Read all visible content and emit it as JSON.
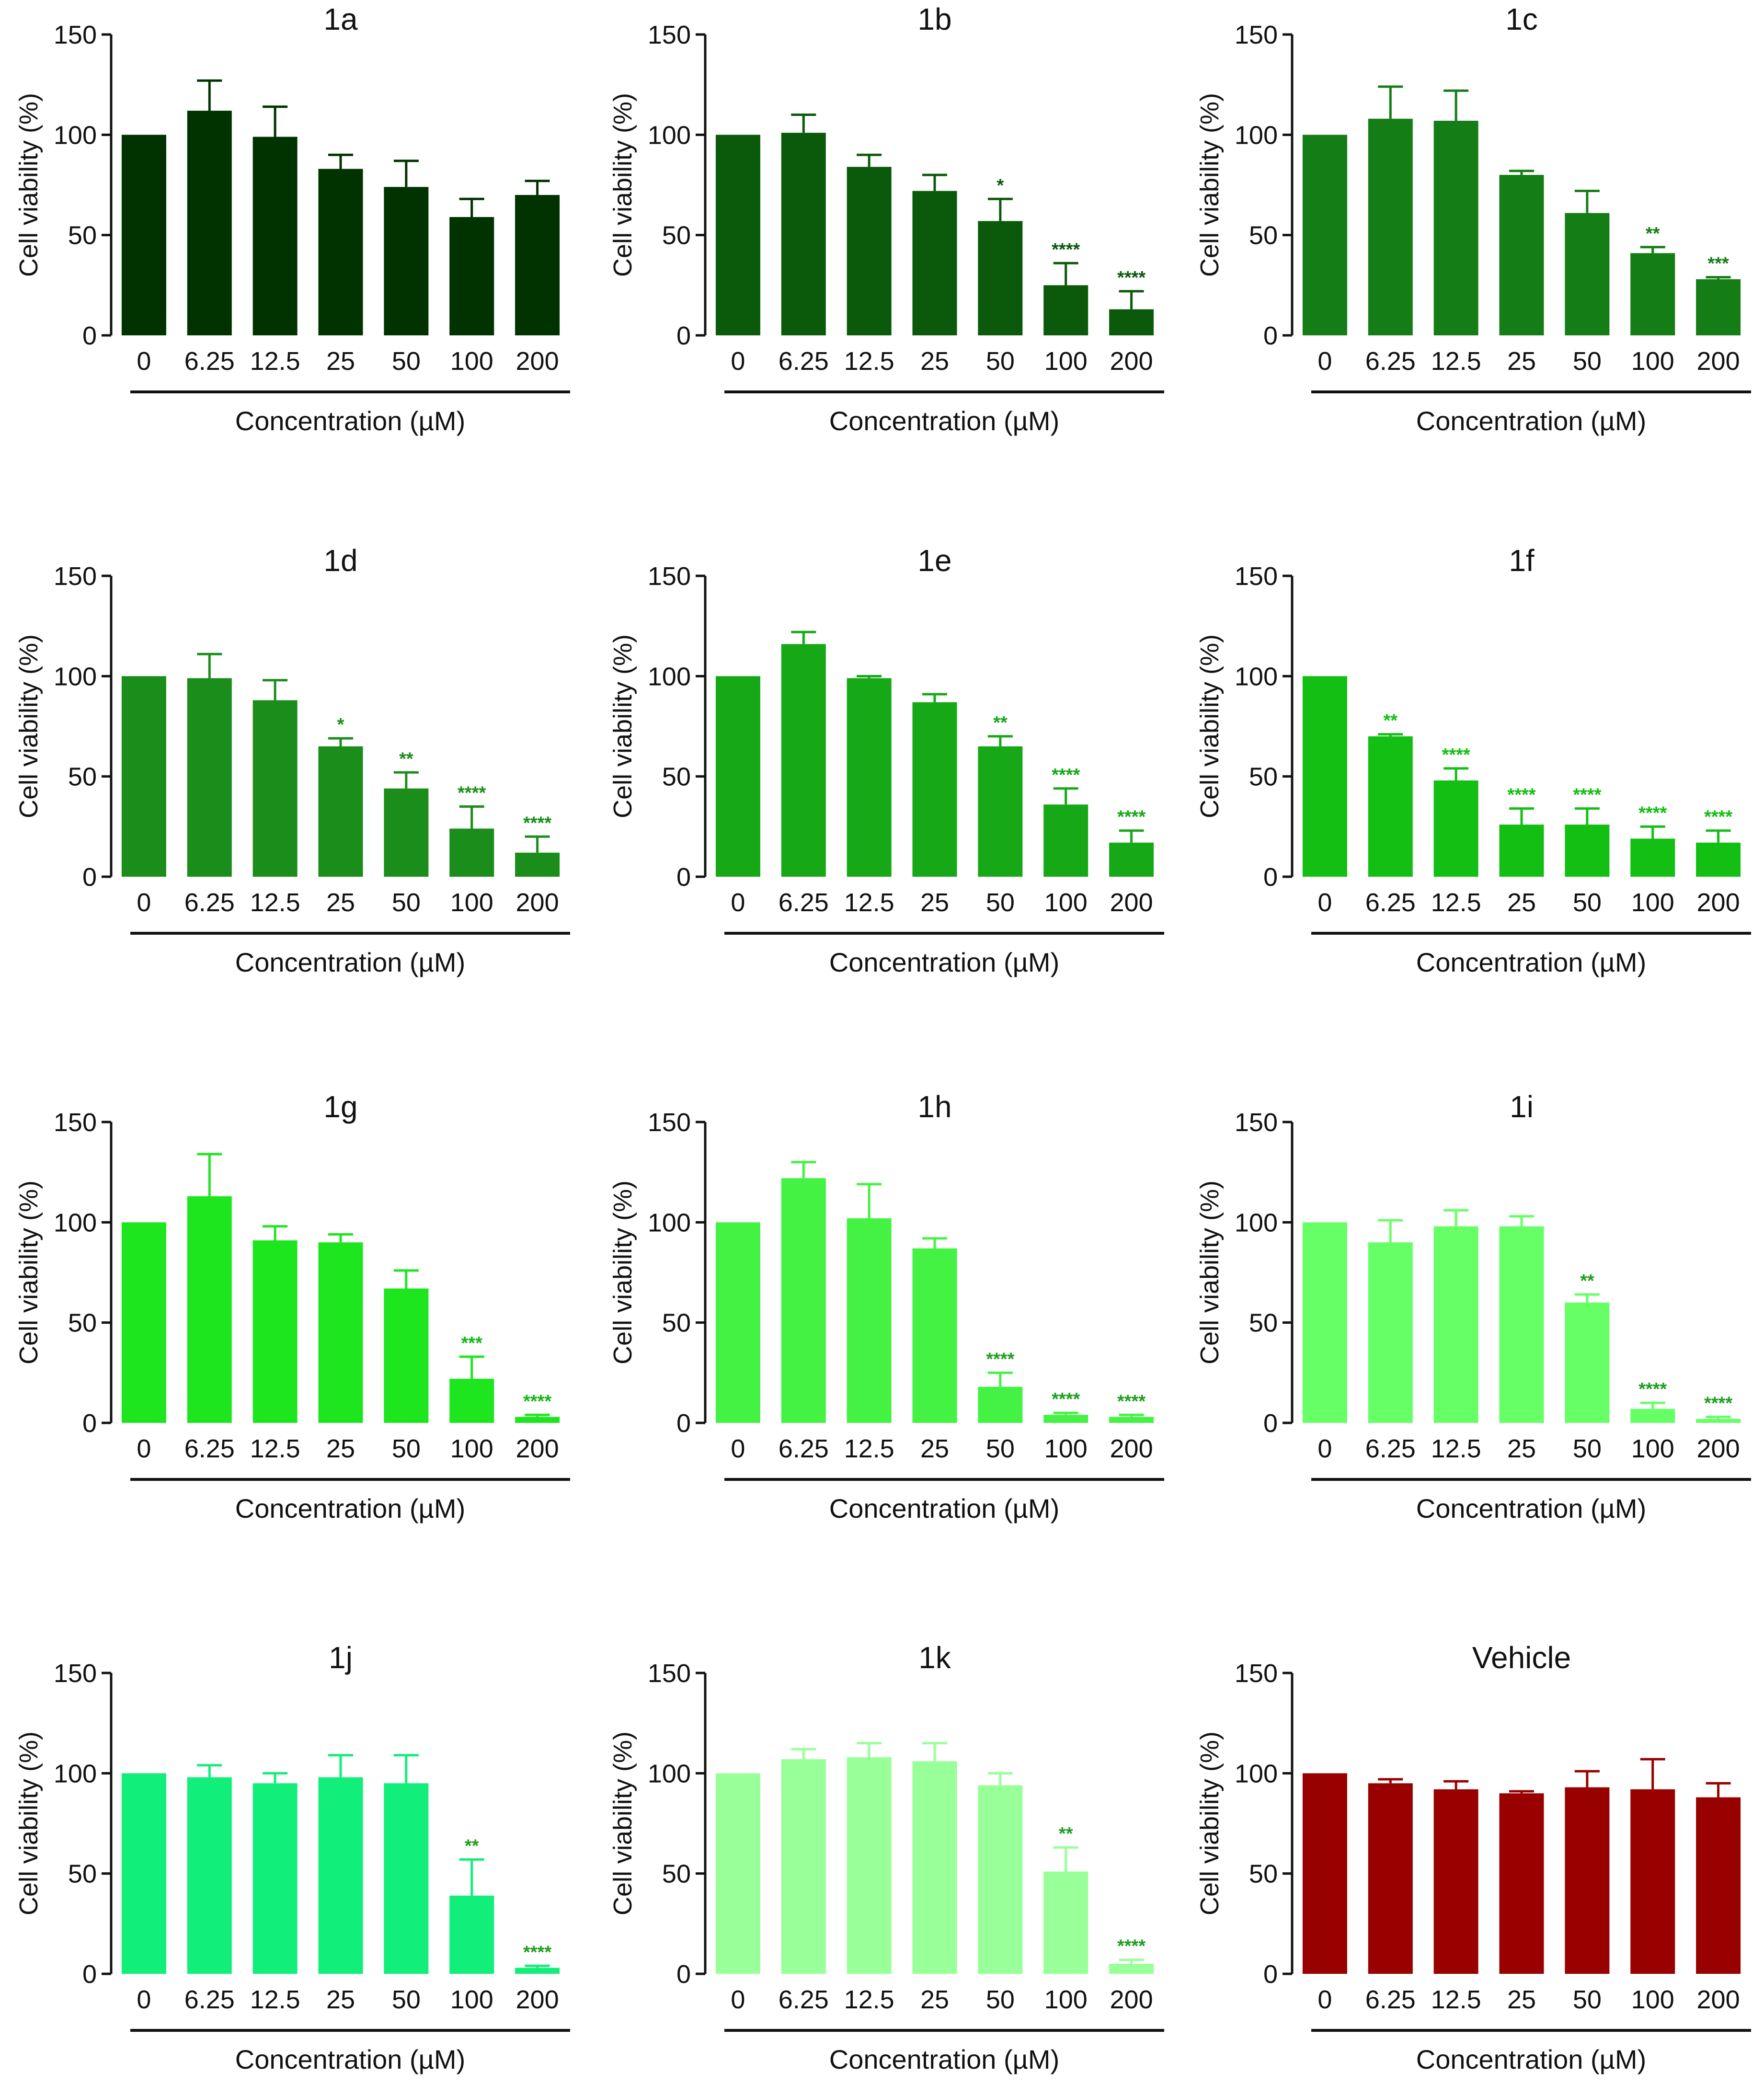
{
  "chart_data": [
    {
      "type": "bar",
      "title": "1a",
      "xlabel": "Concentration (µM)",
      "ylabel": "Cell viability (%)",
      "ylim": [
        0,
        150
      ],
      "yticks": [
        "0",
        "50",
        "100",
        "150"
      ],
      "categories": [
        "0",
        "6.25",
        "12.5",
        "25",
        "50",
        "100",
        "200"
      ],
      "values": [
        100,
        112,
        99,
        83,
        74,
        59,
        70
      ],
      "errors": [
        0,
        15,
        15,
        7,
        13,
        9,
        7
      ],
      "significance": [
        "",
        "",
        "",
        "",
        "",
        "",
        ""
      ],
      "color": "#003300",
      "sig_color": "#003300"
    },
    {
      "type": "bar",
      "title": "1b",
      "xlabel": "Concentration (µM)",
      "ylabel": "Cell viability (%)",
      "ylim": [
        0,
        150
      ],
      "yticks": [
        "0",
        "50",
        "100",
        "150"
      ],
      "categories": [
        "0",
        "6.25",
        "12.5",
        "25",
        "50",
        "100",
        "200"
      ],
      "values": [
        100,
        101,
        84,
        72,
        57,
        25,
        13
      ],
      "errors": [
        0,
        9,
        6,
        8,
        11,
        11,
        9
      ],
      "significance": [
        "",
        "",
        "",
        "",
        "*",
        "****",
        "****"
      ],
      "color": "#0b5a0b",
      "sig_color": "#0b5a0b"
    },
    {
      "type": "bar",
      "title": "1c",
      "xlabel": "Concentration (µM)",
      "ylabel": "Cell viability (%)",
      "ylim": [
        0,
        150
      ],
      "yticks": [
        "0",
        "50",
        "100",
        "150"
      ],
      "categories": [
        "0",
        "6.25",
        "12.5",
        "25",
        "50",
        "100",
        "200"
      ],
      "values": [
        100,
        108,
        107,
        80,
        61,
        41,
        28
      ],
      "errors": [
        0,
        16,
        15,
        2,
        11,
        3,
        1
      ],
      "significance": [
        "",
        "",
        "",
        "",
        "",
        "**",
        "***"
      ],
      "color": "#157d15",
      "sig_color": "#157d15"
    },
    {
      "type": "bar",
      "title": "1d",
      "xlabel": "Concentration (µM)",
      "ylabel": "Cell viability (%)",
      "ylim": [
        0,
        150
      ],
      "yticks": [
        "0",
        "50",
        "100",
        "150"
      ],
      "categories": [
        "0",
        "6.25",
        "12.5",
        "25",
        "50",
        "100",
        "200"
      ],
      "values": [
        100,
        99,
        88,
        65,
        44,
        24,
        12
      ],
      "errors": [
        0,
        12,
        10,
        4,
        8,
        11,
        8
      ],
      "significance": [
        "",
        "",
        "",
        "*",
        "**",
        "****",
        "****"
      ],
      "color": "#1a8d1a",
      "sig_color": "#1a8d1a"
    },
    {
      "type": "bar",
      "title": "1e",
      "xlabel": "Concentration (µM)",
      "ylabel": "Cell viability (%)",
      "ylim": [
        0,
        150
      ],
      "yticks": [
        "0",
        "50",
        "100",
        "150"
      ],
      "categories": [
        "0",
        "6.25",
        "12.5",
        "25",
        "50",
        "100",
        "200"
      ],
      "values": [
        100,
        116,
        99,
        87,
        65,
        36,
        17
      ],
      "errors": [
        0,
        6,
        1,
        4,
        5,
        8,
        6
      ],
      "significance": [
        "",
        "",
        "",
        "",
        "**",
        "****",
        "****"
      ],
      "color": "#16a816",
      "sig_color": "#16a816"
    },
    {
      "type": "bar",
      "title": "1f",
      "xlabel": "Concentration (µM)",
      "ylabel": "Cell viability (%)",
      "ylim": [
        0,
        150
      ],
      "yticks": [
        "0",
        "50",
        "100",
        "150"
      ],
      "categories": [
        "0",
        "6.25",
        "12.5",
        "25",
        "50",
        "100",
        "200"
      ],
      "values": [
        100,
        70,
        48,
        26,
        26,
        19,
        17
      ],
      "errors": [
        0,
        1,
        6,
        8,
        8,
        6,
        6
      ],
      "significance": [
        "",
        "**",
        "****",
        "****",
        "****",
        "****",
        "****"
      ],
      "color": "#12bf12",
      "sig_color": "#12bf12"
    },
    {
      "type": "bar",
      "title": "1g",
      "xlabel": "Concentration (µM)",
      "ylabel": "Cell viability (%)",
      "ylim": [
        0,
        150
      ],
      "yticks": [
        "0",
        "50",
        "100",
        "150"
      ],
      "categories": [
        "0",
        "6.25",
        "12.5",
        "25",
        "50",
        "100",
        "200"
      ],
      "values": [
        100,
        113,
        91,
        90,
        67,
        22,
        3
      ],
      "errors": [
        0,
        21,
        7,
        4,
        9,
        11,
        1
      ],
      "significance": [
        "",
        "",
        "",
        "",
        "",
        "***",
        "****"
      ],
      "color": "#1ee61e",
      "sig_color": "#13b813"
    },
    {
      "type": "bar",
      "title": "1h",
      "xlabel": "Concentration (µM)",
      "ylabel": "Cell viability (%)",
      "ylim": [
        0,
        150
      ],
      "yticks": [
        "0",
        "50",
        "100",
        "150"
      ],
      "categories": [
        "0",
        "6.25",
        "12.5",
        "25",
        "50",
        "100",
        "200"
      ],
      "values": [
        100,
        122,
        102,
        87,
        18,
        4,
        3
      ],
      "errors": [
        0,
        8,
        17,
        5,
        7,
        1,
        1
      ],
      "significance": [
        "",
        "",
        "",
        "",
        "****",
        "****",
        "****"
      ],
      "color": "#44f244",
      "sig_color": "#1f9e1f"
    },
    {
      "type": "bar",
      "title": "1i",
      "xlabel": "Concentration (µM)",
      "ylabel": "Cell viability (%)",
      "ylim": [
        0,
        150
      ],
      "yticks": [
        "0",
        "50",
        "100",
        "150"
      ],
      "categories": [
        "0",
        "6.25",
        "12.5",
        "25",
        "50",
        "100",
        "200"
      ],
      "values": [
        100,
        90,
        98,
        98,
        60,
        7,
        2
      ],
      "errors": [
        0,
        11,
        8,
        5,
        4,
        3,
        1
      ],
      "significance": [
        "",
        "",
        "",
        "",
        "**",
        "****",
        "****"
      ],
      "color": "#66ff66",
      "sig_color": "#1f9e1f"
    },
    {
      "type": "bar",
      "title": "1j",
      "xlabel": "Concentration (µM)",
      "ylabel": "Cell viability (%)",
      "ylim": [
        0,
        150
      ],
      "yticks": [
        "0",
        "50",
        "100",
        "150"
      ],
      "categories": [
        "0",
        "6.25",
        "12.5",
        "25",
        "50",
        "100",
        "200"
      ],
      "values": [
        100,
        98,
        95,
        98,
        95,
        39,
        3
      ],
      "errors": [
        0,
        6,
        5,
        11,
        14,
        18,
        1
      ],
      "significance": [
        "",
        "",
        "",
        "",
        "",
        "**",
        "****"
      ],
      "color": "#11ee7a",
      "sig_color": "#1f9e1f"
    },
    {
      "type": "bar",
      "title": "1k",
      "xlabel": "Concentration (µM)",
      "ylabel": "Cell viability (%)",
      "ylim": [
        0,
        150
      ],
      "yticks": [
        "0",
        "50",
        "100",
        "150"
      ],
      "categories": [
        "0",
        "6.25",
        "12.5",
        "25",
        "50",
        "100",
        "200"
      ],
      "values": [
        100,
        107,
        108,
        106,
        94,
        51,
        5
      ],
      "errors": [
        0,
        5,
        7,
        9,
        6,
        12,
        2
      ],
      "significance": [
        "",
        "",
        "",
        "",
        "",
        "**",
        "****"
      ],
      "color": "#99ff99",
      "sig_color": "#1f9e1f"
    },
    {
      "type": "bar",
      "title": "Vehicle",
      "xlabel": "Concentration (µM)",
      "ylabel": "Cell viability (%)",
      "ylim": [
        0,
        150
      ],
      "yticks": [
        "0",
        "50",
        "100",
        "150"
      ],
      "categories": [
        "0",
        "6.25",
        "12.5",
        "25",
        "50",
        "100",
        "200"
      ],
      "values": [
        100,
        95,
        92,
        90,
        93,
        92,
        88
      ],
      "errors": [
        0,
        2,
        4,
        1,
        8,
        15,
        7
      ],
      "significance": [
        "",
        "",
        "",
        "",
        "",
        "",
        ""
      ],
      "color": "#990000",
      "sig_color": "#990000"
    }
  ]
}
